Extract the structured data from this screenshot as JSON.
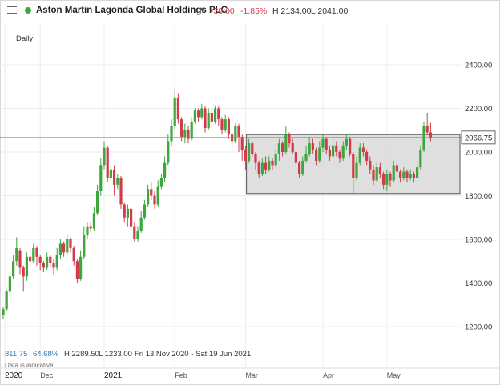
{
  "header": {
    "instrument": "Aston Martin Lagonda Global Holdings PLC",
    "change": "-39.00",
    "change_pct": "-1.85%",
    "high": "H 2134.00",
    "low": "L 2041.00",
    "status_color": "#3fa63f"
  },
  "period_label": "Daily",
  "footer": {
    "value1": "811.75",
    "value2": "64.68%",
    "high": "H 2289.50",
    "low": "L 1233.00",
    "range": "Fri 13 Nov 2020 - Sat 19 Jun 2021",
    "note": "Data is indicative"
  },
  "colors": {
    "up": "#3fa63f",
    "down": "#d13c4a",
    "box_fill": "#d9d9d9"
  },
  "chart_data": {
    "type": "candlestick",
    "ylim": [
      1100,
      2500
    ],
    "y_ticks": [
      1200,
      1400,
      1600,
      1800,
      2000,
      2200,
      2400
    ],
    "y_tick_labels": [
      "1200.00",
      "1400.00",
      "1600.00",
      "1800.00",
      "2000.00",
      "2200.00",
      "2400.00"
    ],
    "x_labels": [
      {
        "label": "2020",
        "day": 0
      },
      {
        "label": "Dec",
        "day": 11
      },
      {
        "label": "2021",
        "day": 30
      },
      {
        "label": "Feb",
        "day": 51
      },
      {
        "label": "Mar",
        "day": 72
      },
      {
        "label": "Apr",
        "day": 95
      },
      {
        "label": "May",
        "day": 114
      }
    ],
    "last_price": 2066.75,
    "last_price_label": "2066.75",
    "range_box": {
      "day_start": 73,
      "day_end": 135,
      "high": 2080,
      "low": 1810
    },
    "candles": [
      [
        1255,
        1280,
        1235,
        1290
      ],
      [
        1280,
        1360,
        1270,
        1370
      ],
      [
        1360,
        1430,
        1340,
        1450
      ],
      [
        1430,
        1500,
        1420,
        1530
      ],
      [
        1500,
        1560,
        1480,
        1610
      ],
      [
        1550,
        1470,
        1440,
        1560
      ],
      [
        1470,
        1430,
        1360,
        1480
      ],
      [
        1430,
        1520,
        1410,
        1540
      ],
      [
        1520,
        1500,
        1480,
        1550
      ],
      [
        1500,
        1560,
        1490,
        1580
      ],
      [
        1560,
        1520,
        1480,
        1570
      ],
      [
        1520,
        1490,
        1460,
        1530
      ],
      [
        1490,
        1470,
        1450,
        1500
      ],
      [
        1470,
        1520,
        1460,
        1540
      ],
      [
        1520,
        1490,
        1470,
        1530
      ],
      [
        1490,
        1470,
        1440,
        1510
      ],
      [
        1470,
        1530,
        1460,
        1560
      ],
      [
        1530,
        1580,
        1510,
        1600
      ],
      [
        1580,
        1540,
        1520,
        1590
      ],
      [
        1540,
        1600,
        1530,
        1620
      ],
      [
        1600,
        1560,
        1540,
        1610
      ],
      [
        1560,
        1500,
        1480,
        1570
      ],
      [
        1500,
        1420,
        1400,
        1510
      ],
      [
        1420,
        1520,
        1410,
        1550
      ],
      [
        1520,
        1620,
        1510,
        1660
      ],
      [
        1620,
        1660,
        1600,
        1680
      ],
      [
        1660,
        1650,
        1630,
        1680
      ],
      [
        1650,
        1720,
        1640,
        1750
      ],
      [
        1720,
        1820,
        1710,
        1850
      ],
      [
        1820,
        1940,
        1800,
        1970
      ],
      [
        1940,
        2020,
        1920,
        2050
      ],
      [
        2020,
        1880,
        1860,
        2030
      ],
      [
        1880,
        1920,
        1860,
        1950
      ],
      [
        1920,
        1850,
        1800,
        1940
      ],
      [
        1850,
        1880,
        1830,
        1900
      ],
      [
        1880,
        1760,
        1740,
        1890
      ],
      [
        1760,
        1700,
        1680,
        1770
      ],
      [
        1700,
        1740,
        1660,
        1760
      ],
      [
        1740,
        1660,
        1640,
        1750
      ],
      [
        1660,
        1600,
        1590,
        1680
      ],
      [
        1600,
        1640,
        1590,
        1660
      ],
      [
        1640,
        1700,
        1630,
        1730
      ],
      [
        1700,
        1760,
        1690,
        1780
      ],
      [
        1760,
        1830,
        1750,
        1850
      ],
      [
        1830,
        1800,
        1780,
        1860
      ],
      [
        1800,
        1760,
        1740,
        1820
      ],
      [
        1760,
        1840,
        1750,
        1870
      ],
      [
        1840,
        1880,
        1830,
        1900
      ],
      [
        1880,
        1950,
        1860,
        1980
      ],
      [
        1950,
        2050,
        1940,
        2080
      ],
      [
        2050,
        2120,
        2030,
        2150
      ],
      [
        2120,
        2250,
        2100,
        2290
      ],
      [
        2250,
        2150,
        2130,
        2270
      ],
      [
        2150,
        2070,
        2050,
        2160
      ],
      [
        2070,
        2100,
        2040,
        2130
      ],
      [
        2100,
        2060,
        2040,
        2120
      ],
      [
        2060,
        2140,
        2050,
        2160
      ],
      [
        2140,
        2190,
        2130,
        2200
      ],
      [
        2190,
        2160,
        2140,
        2200
      ],
      [
        2160,
        2200,
        2150,
        2220
      ],
      [
        2200,
        2110,
        2090,
        2210
      ],
      [
        2110,
        2180,
        2100,
        2200
      ],
      [
        2180,
        2140,
        2110,
        2200
      ],
      [
        2140,
        2200,
        2130,
        2210
      ],
      [
        2200,
        2150,
        2120,
        2210
      ],
      [
        2150,
        2100,
        2080,
        2160
      ],
      [
        2100,
        2150,
        2090,
        2170
      ],
      [
        2150,
        2080,
        2060,
        2160
      ],
      [
        2080,
        2050,
        2010,
        2090
      ],
      [
        2050,
        2120,
        2040,
        2130
      ],
      [
        2120,
        2070,
        2000,
        2130
      ],
      [
        2070,
        2010,
        1960,
        2080
      ],
      [
        2010,
        1960,
        1920,
        2030
      ],
      [
        1960,
        2040,
        1950,
        2060
      ],
      [
        2040,
        1990,
        1980,
        2050
      ],
      [
        1990,
        1950,
        1920,
        2000
      ],
      [
        1950,
        1900,
        1880,
        1960
      ],
      [
        1900,
        1950,
        1890,
        1970
      ],
      [
        1950,
        1920,
        1900,
        1980
      ],
      [
        1920,
        1960,
        1910,
        1980
      ],
      [
        1960,
        1940,
        1920,
        1970
      ],
      [
        1940,
        1990,
        1930,
        2010
      ],
      [
        1990,
        2040,
        1960,
        2060
      ],
      [
        2040,
        2000,
        1980,
        2050
      ],
      [
        2000,
        2080,
        1990,
        2120
      ],
      [
        2080,
        2040,
        2020,
        2090
      ],
      [
        2040,
        2000,
        1990,
        2060
      ],
      [
        2000,
        1950,
        1940,
        2010
      ],
      [
        1950,
        1900,
        1880,
        1960
      ],
      [
        1900,
        1960,
        1890,
        1980
      ],
      [
        1960,
        1990,
        1950,
        2030
      ],
      [
        1990,
        2040,
        1980,
        2070
      ],
      [
        2040,
        2010,
        1990,
        2060
      ],
      [
        2010,
        1960,
        1940,
        2020
      ],
      [
        1960,
        2020,
        1950,
        2050
      ],
      [
        2020,
        2060,
        2000,
        2080
      ],
      [
        2060,
        2010,
        1990,
        2070
      ],
      [
        2010,
        1980,
        1960,
        2030
      ],
      [
        1980,
        2030,
        1970,
        2060
      ],
      [
        2030,
        2000,
        1980,
        2050
      ],
      [
        2000,
        1970,
        1950,
        2010
      ],
      [
        1970,
        2030,
        1960,
        2050
      ],
      [
        2030,
        2060,
        2010,
        2080
      ],
      [
        2060,
        1990,
        1980,
        2070
      ],
      [
        1990,
        1880,
        1810,
        2000
      ],
      [
        1880,
        1950,
        1870,
        1980
      ],
      [
        1950,
        2020,
        1940,
        2040
      ],
      [
        2020,
        2000,
        1980,
        2040
      ],
      [
        2000,
        1960,
        1940,
        2010
      ],
      [
        1960,
        1920,
        1900,
        1980
      ],
      [
        1920,
        1870,
        1850,
        1940
      ],
      [
        1870,
        1930,
        1860,
        1950
      ],
      [
        1930,
        1900,
        1880,
        1950
      ],
      [
        1900,
        1850,
        1830,
        1910
      ],
      [
        1850,
        1900,
        1820,
        1920
      ],
      [
        1900,
        1870,
        1840,
        1910
      ],
      [
        1870,
        1940,
        1860,
        1960
      ],
      [
        1940,
        1910,
        1880,
        1950
      ],
      [
        1910,
        1880,
        1860,
        1920
      ],
      [
        1880,
        1910,
        1870,
        1930
      ],
      [
        1910,
        1880,
        1860,
        1920
      ],
      [
        1880,
        1900,
        1870,
        1920
      ],
      [
        1900,
        1880,
        1860,
        1910
      ],
      [
        1880,
        1930,
        1870,
        1960
      ],
      [
        1930,
        2010,
        1920,
        2030
      ],
      [
        2010,
        2120,
        2000,
        2140
      ],
      [
        2120,
        2090,
        2080,
        2180
      ],
      [
        2090,
        2066,
        2050,
        2134
      ]
    ]
  }
}
